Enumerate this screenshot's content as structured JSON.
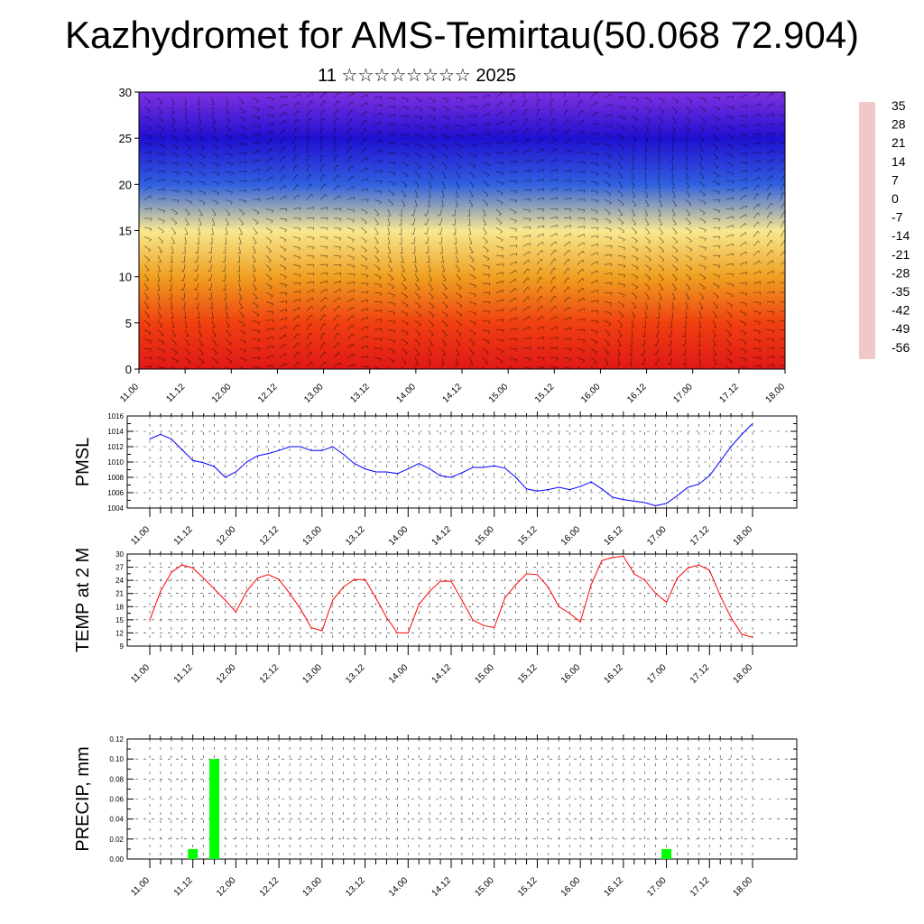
{
  "title": "Kazhydromet for AMS-Temirtau(50.068 72.904)",
  "subtitle": "11 ☆☆☆☆☆☆☆☆ 2025",
  "x_tick_labels": [
    "11.00",
    "11.12",
    "12.00",
    "12.12",
    "13.00",
    "13.12",
    "14.00",
    "14.12",
    "15.00",
    "15.12",
    "16.00",
    "16.12",
    "17.00",
    "17.12",
    "18.00"
  ],
  "chart_data": [
    {
      "type": "heatmap",
      "ylim": [
        0,
        30
      ],
      "yticks": [
        0,
        5,
        10,
        15,
        20,
        25,
        30
      ],
      "colorbar": {
        "labels": [
          "35",
          "28",
          "21",
          "14",
          "7",
          "0",
          "-7",
          "-14",
          "-21",
          "-28",
          "-35",
          "-42",
          "-49",
          "-56"
        ],
        "colors": [
          "#f0c8c8",
          "#e01818",
          "#f04010",
          "#f07010",
          "#f0a020",
          "#f0c840",
          "#f8e890",
          "#c8e8f0",
          "#50c0f0",
          "#2090e0",
          "#3060e0",
          "#2030e0",
          "#2010d0",
          "#8030e0"
        ]
      },
      "profile": [
        {
          "height": 0,
          "temp": 25
        },
        {
          "height": 5,
          "temp": 20
        },
        {
          "height": 10,
          "temp": 8
        },
        {
          "height": 15,
          "temp": -8
        },
        {
          "height": 20,
          "temp": -35
        },
        {
          "height": 25,
          "temp": -50
        },
        {
          "height": 30,
          "temp": -56
        }
      ],
      "overlay": "wind barbs"
    },
    {
      "type": "line",
      "ylabel": "PMSL",
      "ylim": [
        1004,
        1016
      ],
      "yticks": [
        1004,
        1006,
        1008,
        1010,
        1012,
        1014,
        1016
      ],
      "color": "#0000ff",
      "x_step_hours": 3,
      "values": [
        1013.0,
        1013.6,
        1013.0,
        1011.6,
        1010.2,
        1009.9,
        1009.4,
        1008.0,
        1008.7,
        1010.0,
        1010.8,
        1011.1,
        1011.5,
        1012.0,
        1012.0,
        1011.5,
        1011.5,
        1012.0,
        1011.0,
        1009.8,
        1009.1,
        1008.7,
        1008.7,
        1008.5,
        1009.1,
        1009.8,
        1009.1,
        1008.2,
        1008.0,
        1008.6,
        1009.3,
        1009.3,
        1009.5,
        1009.2,
        1008.0,
        1006.5,
        1006.2,
        1006.4,
        1006.7,
        1006.4,
        1006.8,
        1007.4,
        1006.5,
        1005.4,
        1005.1,
        1004.9,
        1004.7,
        1004.3,
        1004.6,
        1005.6,
        1006.7,
        1007.1,
        1008.2,
        1010.1,
        1012.0,
        1013.6,
        1015.0
      ]
    },
    {
      "type": "line",
      "ylabel": "TEMP at 2 M",
      "ylim": [
        9,
        30
      ],
      "yticks": [
        9,
        12,
        15,
        18,
        21,
        24,
        27,
        30
      ],
      "color": "#ff0000",
      "x_step_hours": 3,
      "values": [
        15.0,
        21.5,
        25.8,
        27.5,
        26.8,
        24.5,
        22.0,
        19.5,
        16.8,
        21.5,
        24.5,
        25.3,
        24.2,
        21.0,
        17.5,
        13.2,
        12.5,
        19.5,
        22.5,
        24.2,
        24.2,
        20.0,
        15.5,
        12.0,
        12.0,
        18.5,
        21.5,
        23.8,
        23.8,
        19.5,
        15.0,
        13.7,
        13.2,
        20.0,
        23.0,
        25.5,
        25.3,
        22.5,
        18.0,
        16.5,
        14.5,
        23.0,
        28.5,
        29.2,
        29.5,
        25.5,
        24.0,
        21.0,
        19.0,
        24.5,
        26.8,
        27.5,
        26.3,
        20.5,
        15.5,
        11.7,
        11.0
      ]
    },
    {
      "type": "bar",
      "ylabel": "PRECIP, mm",
      "ylim": [
        0,
        0.12
      ],
      "yticks": [
        "0.00",
        "0.02",
        "0.04",
        "0.06",
        "0.08",
        "0.10",
        "0.12"
      ],
      "color": "#00ff00",
      "x_step_hours": 3,
      "values": [
        0,
        0,
        0,
        0,
        0.01,
        0,
        0.1,
        0,
        0,
        0,
        0,
        0,
        0,
        0,
        0,
        0,
        0,
        0,
        0,
        0,
        0,
        0,
        0,
        0,
        0,
        0,
        0,
        0,
        0,
        0,
        0,
        0,
        0,
        0,
        0,
        0,
        0,
        0,
        0,
        0,
        0,
        0,
        0,
        0,
        0,
        0,
        0,
        0,
        0.01,
        0,
        0,
        0,
        0,
        0,
        0,
        0,
        0
      ]
    }
  ]
}
